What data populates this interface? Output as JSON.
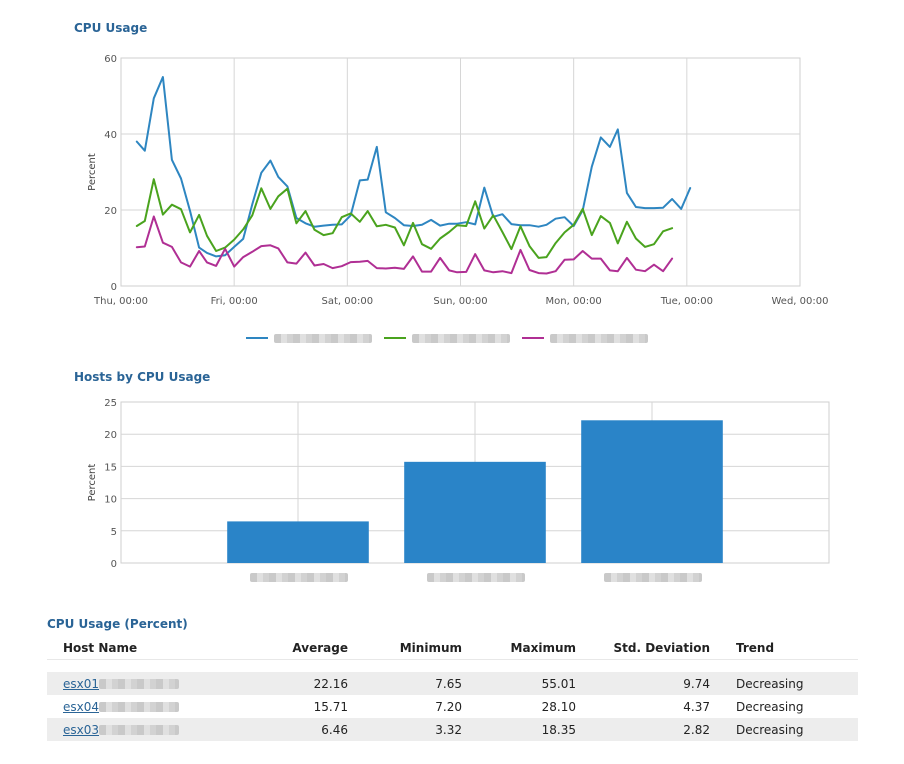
{
  "line_section": {
    "title": "CPU Usage"
  },
  "bar_section": {
    "title": "Hosts by CPU Usage"
  },
  "table_section": {
    "title": "CPU Usage (Percent)",
    "columns": [
      "Host Name",
      "Average",
      "Minimum",
      "Maximum",
      "Std. Deviation",
      "Trend"
    ],
    "rows": [
      {
        "host": "esx01",
        "average": "22.16",
        "minimum": "7.65",
        "maximum": "55.01",
        "std_dev": "9.74",
        "trend": "Decreasing"
      },
      {
        "host": "esx04",
        "average": "15.71",
        "minimum": "7.20",
        "maximum": "28.10",
        "std_dev": "4.37",
        "trend": "Decreasing"
      },
      {
        "host": "esx03",
        "average": "6.46",
        "minimum": "3.32",
        "maximum": "18.35",
        "std_dev": "2.82",
        "trend": "Decreasing"
      }
    ]
  },
  "chart_data": [
    {
      "type": "line",
      "title": "CPU Usage",
      "xlabel": "",
      "ylabel": "Percent",
      "ylim": [
        0,
        60
      ],
      "yticks": [
        "0",
        "20",
        "40",
        "60"
      ],
      "xticks": [
        "Thu, 00:00",
        "Fri, 00:00",
        "Sat, 00:00",
        "Sun, 00:00",
        "Mon, 00:00",
        "Tue, 00:00",
        "Wed, 00:00"
      ],
      "xlim_days": [
        0,
        6
      ],
      "grid": true,
      "legend": "bottom",
      "colors": [
        "#2e86c1",
        "#4aa31e",
        "#b02f94"
      ],
      "x_days": [
        0.14,
        0.21,
        0.29,
        0.37,
        0.45,
        0.53,
        0.61,
        0.69,
        0.76,
        0.84,
        0.92,
        1.0,
        1.08,
        1.16,
        1.24,
        1.32,
        1.39,
        1.47,
        1.55,
        1.63,
        1.71,
        1.79,
        1.87,
        1.95,
        2.03,
        2.11,
        2.18,
        2.26,
        2.34,
        2.42,
        2.5,
        2.58,
        2.66,
        2.74,
        2.82,
        2.9,
        2.97,
        3.05,
        3.13,
        3.21,
        3.29,
        3.37,
        3.45,
        3.53,
        3.61,
        3.69,
        3.76,
        3.84,
        3.92,
        4.0,
        4.08,
        4.16,
        4.24,
        4.32,
        4.39,
        4.47,
        4.55,
        4.63,
        4.71,
        4.79,
        4.87,
        4.95,
        5.03,
        5.11,
        5.18,
        5.26,
        5.34
      ],
      "series": [
        {
          "values": [
            38,
            35.6,
            49.4,
            55,
            33.2,
            28.3,
            19.8,
            10.1,
            8.7,
            7.8,
            8.1,
            10.3,
            12.4,
            21.5,
            29.8,
            33,
            28.7,
            26.2,
            17.9,
            16.5,
            15.6,
            15.9,
            16.1,
            16.2,
            18.6,
            27.8,
            28,
            36.6,
            19.4,
            17.9,
            16,
            15.8,
            16.1,
            17.4,
            15.9,
            16.4,
            16.4,
            16.8,
            16.2,
            25.9,
            18.2,
            18.9,
            16.3,
            16,
            16,
            15.6,
            16.1,
            17.7,
            18.1,
            15.8,
            19.9,
            31.4,
            39.1,
            36.6,
            41.2,
            24.5,
            20.8,
            20.5,
            20.5,
            20.6,
            22.9,
            20.3,
            25.8
          ]
        },
        {
          "values": [
            15.8,
            17.1,
            28.1,
            18.8,
            21.4,
            20.2,
            14.1,
            18.7,
            13.2,
            9.2,
            10.1,
            12.2,
            14.9,
            18.6,
            25.7,
            20.3,
            23.6,
            25.6,
            16.5,
            19.7,
            14.8,
            13.4,
            13.9,
            18.1,
            19.1,
            16.9,
            19.7,
            15.7,
            16.1,
            15.4,
            10.7,
            16.6,
            11,
            9.8,
            12.5,
            14.2,
            16,
            15.8,
            22.3,
            15.1,
            18.6,
            14.2,
            9.7,
            15.7,
            10.5,
            7.4,
            7.6,
            11.3,
            14.1,
            16.1,
            20.3,
            13.4,
            18.4,
            16.6,
            11.2,
            16.9,
            12.5,
            10.3,
            11,
            14.4,
            15.2
          ]
        },
        {
          "values": [
            10.2,
            10.4,
            18.3,
            11.4,
            10.3,
            6.2,
            5.1,
            9.2,
            6.2,
            5.3,
            9.8,
            5.1,
            7.6,
            9,
            10.5,
            10.7,
            9.9,
            6.2,
            5.9,
            8.8,
            5.4,
            5.8,
            4.7,
            5.2,
            6.3,
            6.4,
            6.6,
            4.7,
            4.6,
            4.8,
            4.5,
            7.8,
            3.8,
            3.8,
            7.4,
            4.1,
            3.6,
            3.7,
            8.4,
            4.1,
            3.6,
            3.9,
            3.4,
            9.5,
            4.2,
            3.4,
            3.3,
            3.9,
            6.9,
            7,
            9.2,
            7.2,
            7.2,
            4.1,
            3.9,
            7.4,
            4.3,
            3.9,
            5.6,
            3.9,
            7.2
          ]
        }
      ]
    },
    {
      "type": "bar",
      "title": "Hosts by CPU Usage",
      "xlabel": "",
      "ylabel": "Percent",
      "ylim": [
        0,
        25
      ],
      "yticks": [
        "0",
        "5",
        "10",
        "15",
        "20",
        "25"
      ],
      "grid": true,
      "color": "#2a84c8",
      "values": [
        6.46,
        15.71,
        22.16
      ]
    }
  ]
}
